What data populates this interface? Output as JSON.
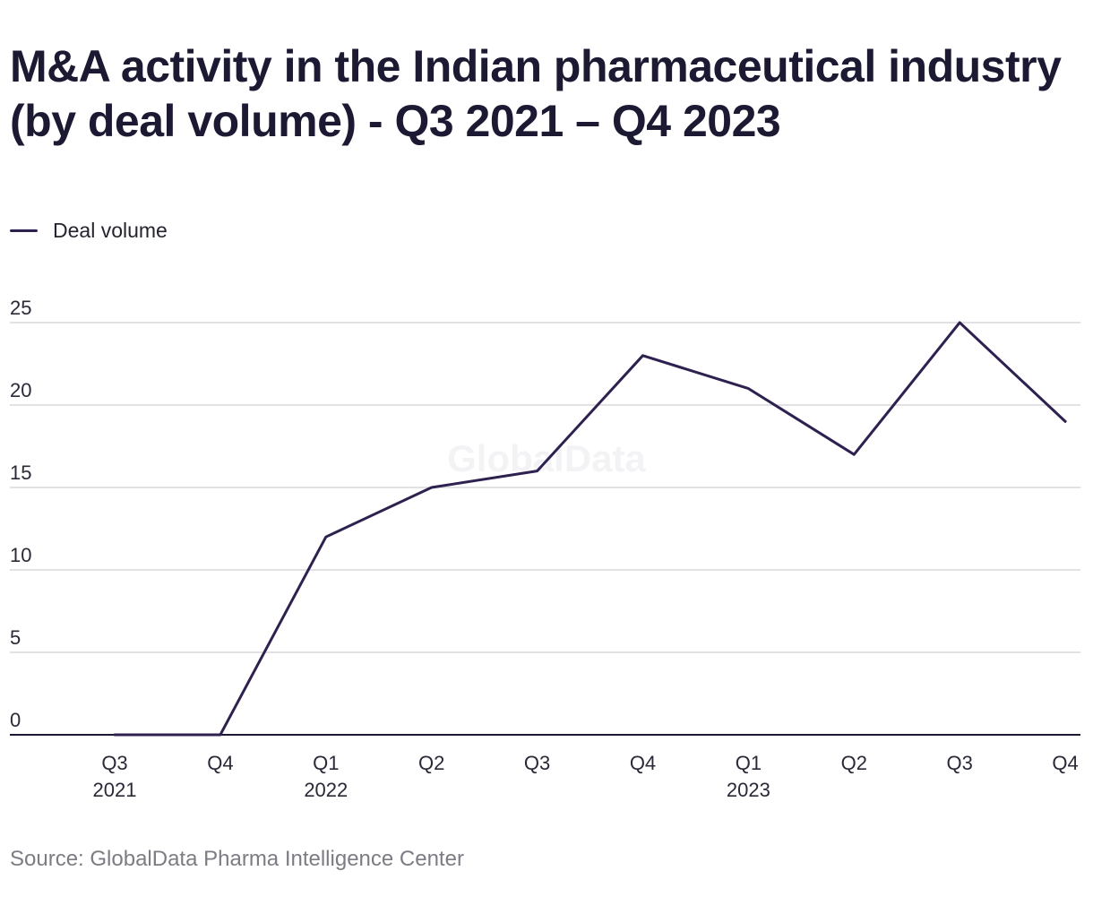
{
  "title": "M&A activity in the Indian pharmaceutical industry (by deal volume) - Q3 2021 – Q4 2023",
  "watermark": "GlobalData",
  "source": "Source: GlobalData Pharma Intelligence Center",
  "colors": {
    "series": "#2e2150",
    "grid": "#d9d9dc",
    "axis": "#1c1933",
    "text": "#2b2838"
  },
  "chart_data": {
    "type": "line",
    "categories": [
      [
        "Q3",
        "2021"
      ],
      [
        "Q4"
      ],
      [
        "Q1",
        "2022"
      ],
      [
        "Q2"
      ],
      [
        "Q3"
      ],
      [
        "Q4"
      ],
      [
        "Q1",
        "2023"
      ],
      [
        "Q2"
      ],
      [
        "Q3"
      ],
      [
        "Q4"
      ]
    ],
    "series": [
      {
        "name": "Deal volume",
        "values": [
          0,
          0,
          12,
          15,
          16,
          23,
          21,
          17,
          25,
          19
        ]
      }
    ],
    "ylim": [
      0,
      25
    ],
    "yticks": [
      0,
      5,
      10,
      15,
      20,
      25
    ],
    "grid": true,
    "legend": "top-left"
  }
}
